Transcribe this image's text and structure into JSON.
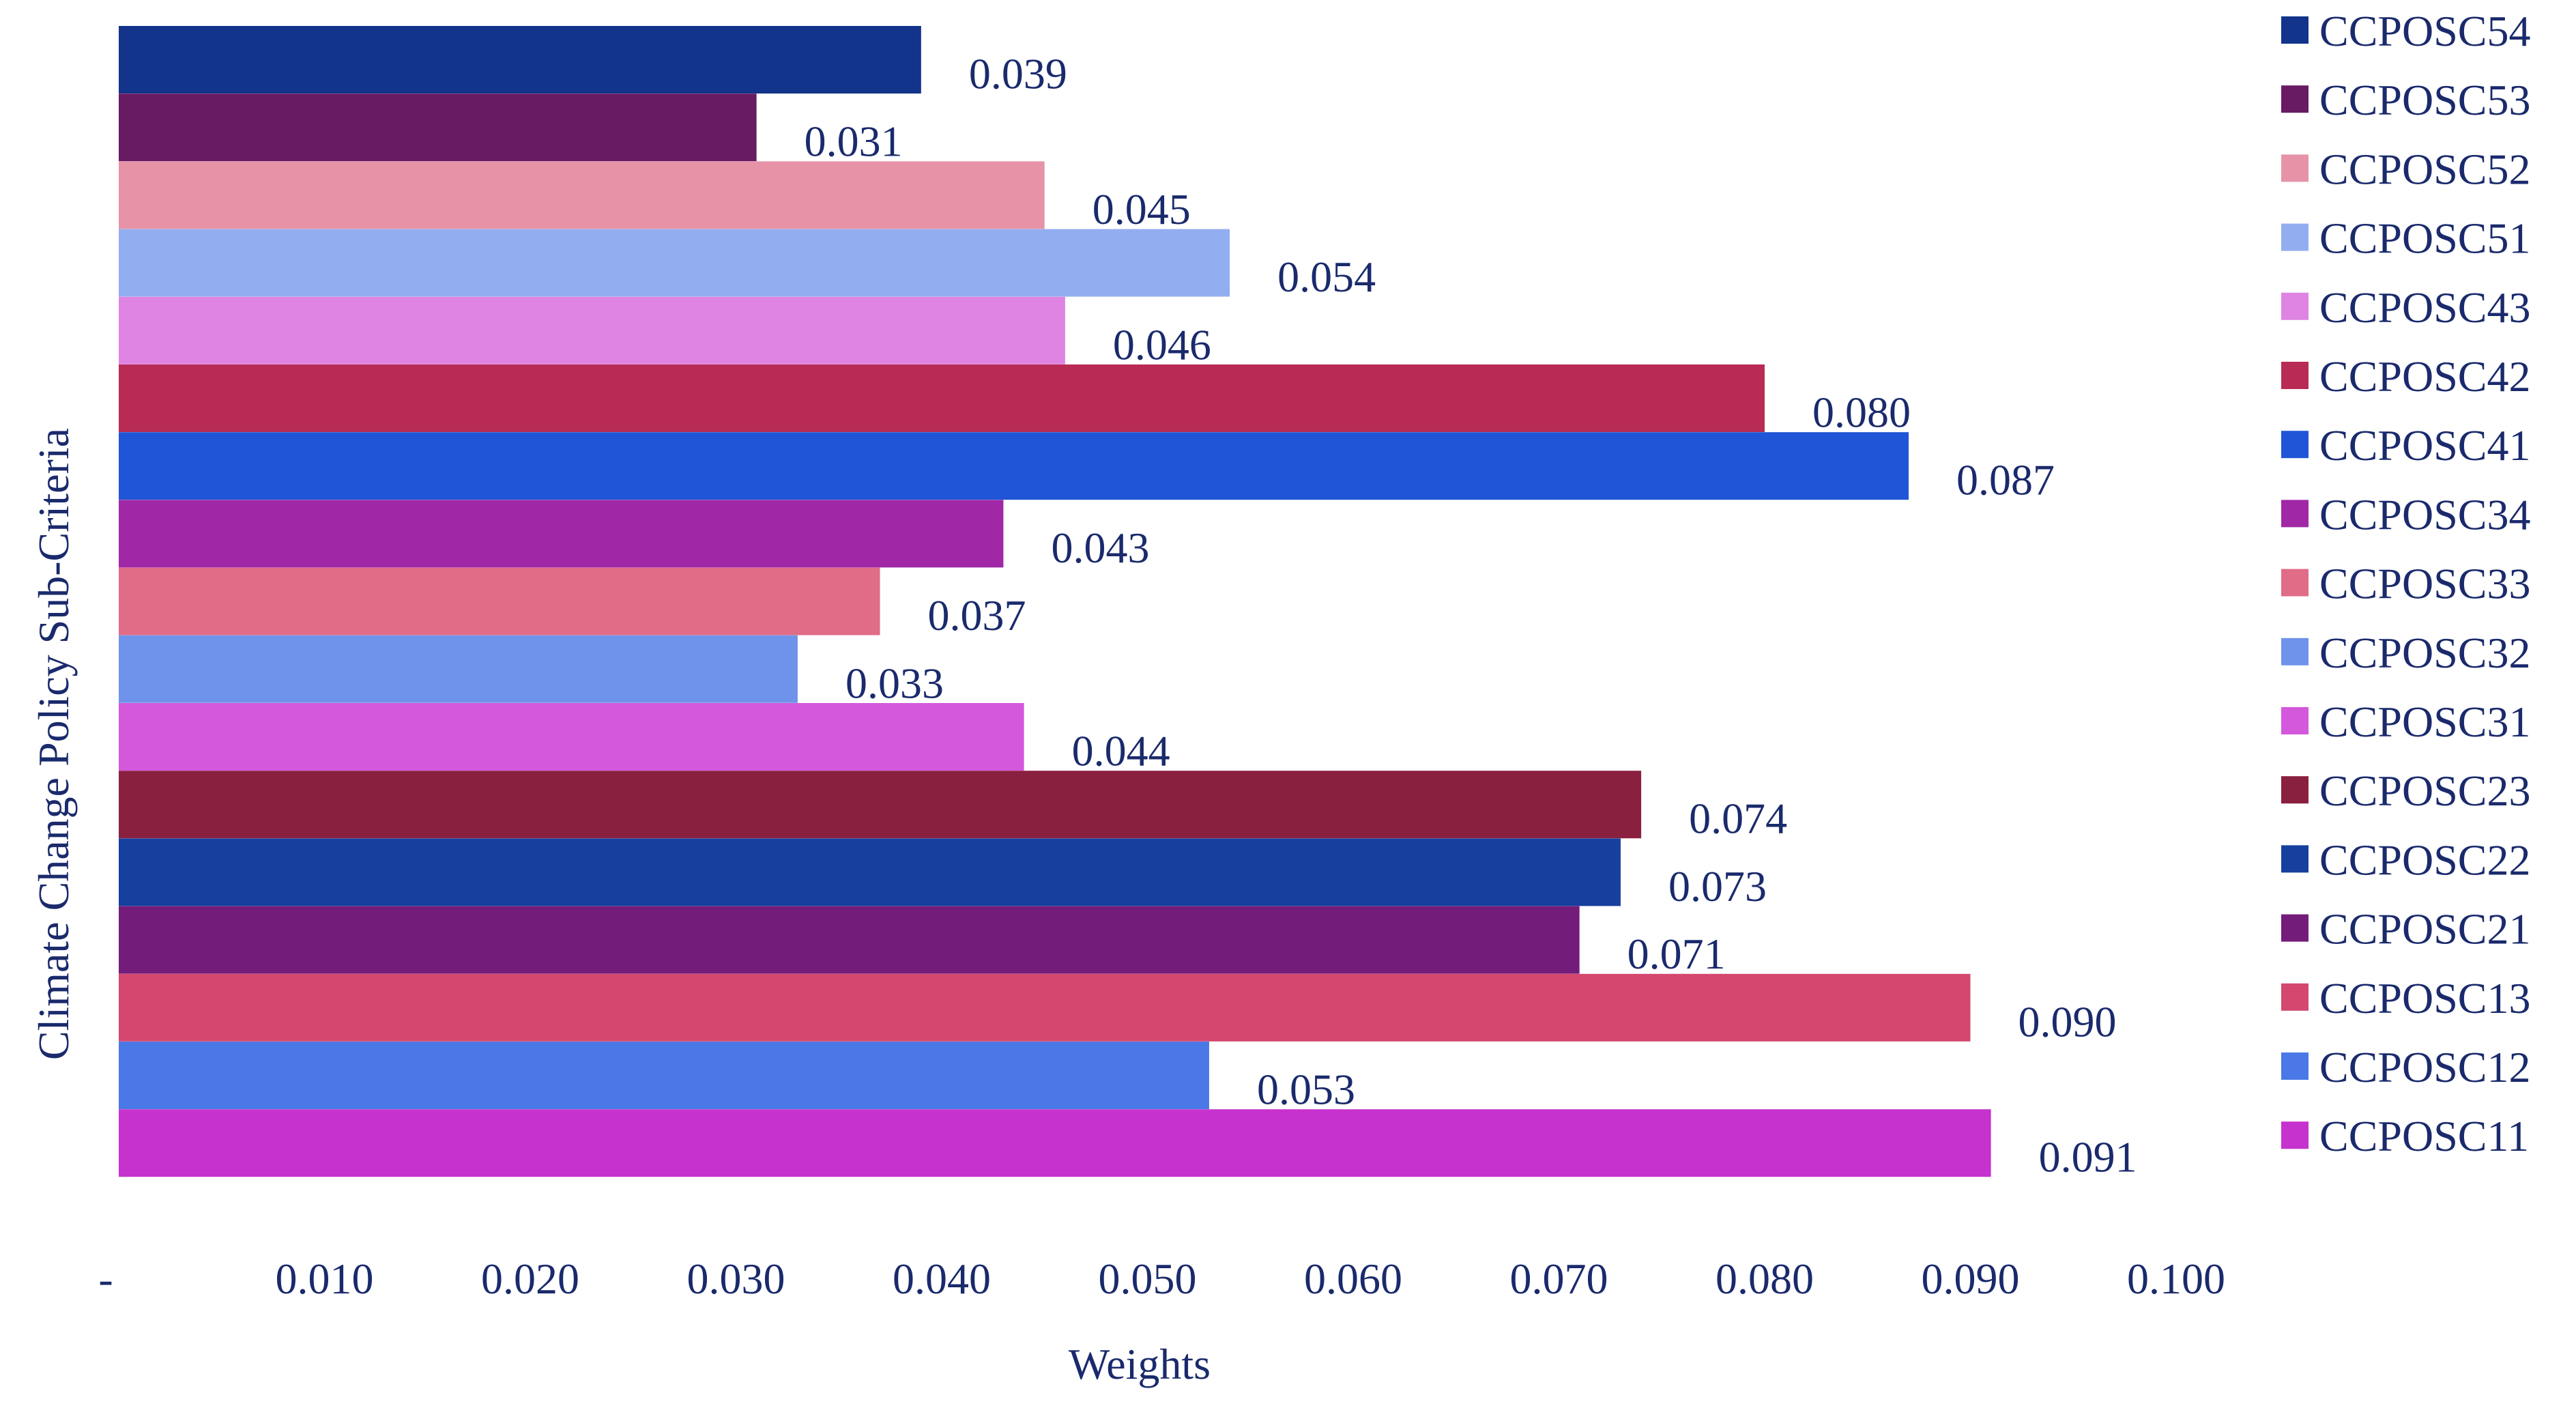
{
  "chart_data": {
    "type": "bar",
    "orientation": "horizontal",
    "title": "",
    "xlabel": "Weights",
    "ylabel": "Climate Change Policy Sub-Criteria",
    "xlim": [
      0,
      0.1
    ],
    "grid": false,
    "legend_position": "right",
    "x_ticks": [
      "-",
      "0.010",
      "0.020",
      "0.030",
      "0.040",
      "0.050",
      "0.060",
      "0.070",
      "0.080",
      "0.090",
      "0.100"
    ],
    "x_tick_values": [
      0,
      0.01,
      0.02,
      0.03,
      0.04,
      0.05,
      0.06,
      0.07,
      0.08,
      0.09,
      0.1
    ],
    "series": [
      {
        "name": "CCPOSC54",
        "value": 0.039,
        "label": "0.039",
        "color": "#12348a"
      },
      {
        "name": "CCPOSC53",
        "value": 0.031,
        "label": "0.031",
        "color": "#681a62"
      },
      {
        "name": "CCPOSC52",
        "value": 0.045,
        "label": "0.045",
        "color": "#e693a8"
      },
      {
        "name": "CCPOSC51",
        "value": 0.054,
        "label": "0.054",
        "color": "#93aef0"
      },
      {
        "name": "CCPOSC43",
        "value": 0.046,
        "label": "0.046",
        "color": "#df84e2"
      },
      {
        "name": "CCPOSC42",
        "value": 0.08,
        "label": "0.080",
        "color": "#b82b54"
      },
      {
        "name": "CCPOSC41",
        "value": 0.087,
        "label": "0.087",
        "color": "#1f55d6"
      },
      {
        "name": "CCPOSC34",
        "value": 0.043,
        "label": "0.043",
        "color": "#a028a6"
      },
      {
        "name": "CCPOSC33",
        "value": 0.037,
        "label": "0.037",
        "color": "#e06c88"
      },
      {
        "name": "CCPOSC32",
        "value": 0.033,
        "label": "0.033",
        "color": "#6f93ea"
      },
      {
        "name": "CCPOSC31",
        "value": 0.044,
        "label": "0.044",
        "color": "#d358dc"
      },
      {
        "name": "CCPOSC23",
        "value": 0.074,
        "label": "0.074",
        "color": "#8a2040"
      },
      {
        "name": "CCPOSC22",
        "value": 0.073,
        "label": "0.073",
        "color": "#163f9e"
      },
      {
        "name": "CCPOSC21",
        "value": 0.071,
        "label": "0.071",
        "color": "#741c7a"
      },
      {
        "name": "CCPOSC13",
        "value": 0.09,
        "label": "0.090",
        "color": "#d4476f"
      },
      {
        "name": "CCPOSC12",
        "value": 0.053,
        "label": "0.053",
        "color": "#4a78e6"
      },
      {
        "name": "CCPOSC11",
        "value": 0.091,
        "label": "0.091",
        "color": "#c632cd"
      }
    ]
  }
}
